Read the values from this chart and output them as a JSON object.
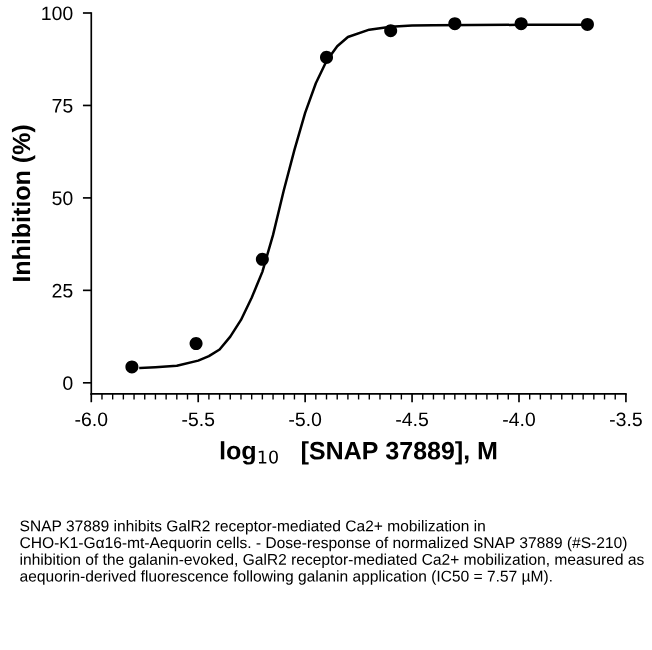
{
  "chart_data": {
    "type": "scatter",
    "xlabel": "log$_{10}$   [SNAP 37889], M",
    "ylabel": "Inhibition (%)",
    "series": [
      {
        "color": "#000000",
        "marker": "circle",
        "x": [
          -5.81,
          -5.51,
          -5.2,
          -4.9,
          -4.6,
          -4.3,
          -3.99,
          -3.68
        ],
        "values": [
          4.3,
          10.6,
          33.4,
          88.0,
          95.2,
          97.1,
          97.1,
          96.9
        ]
      },
      {
        "type": "line",
        "color": "#000000",
        "marker": "none",
        "x": [
          -5.77,
          -5.7,
          -5.6,
          -5.5,
          -5.45,
          -5.4,
          -5.35,
          -5.3,
          -5.25,
          -5.2,
          -5.15,
          -5.1,
          -5.05,
          -5.0,
          -4.95,
          -4.9,
          -4.85,
          -4.8,
          -4.7,
          -4.6,
          -4.5,
          -4.4,
          -4.0,
          -3.68
        ],
        "values": [
          4.0,
          4.2,
          4.6,
          6.0,
          7.2,
          9.0,
          12.5,
          17.0,
          23.0,
          30.0,
          40.0,
          52.0,
          63.0,
          73.0,
          81.0,
          87.0,
          91.0,
          93.5,
          95.5,
          96.3,
          96.6,
          96.7,
          96.8,
          96.8
        ]
      }
    ],
    "xlim": [
      -6.0,
      -3.5
    ],
    "xticks": [
      {
        "value": -6.0,
        "label": "-6.0"
      },
      {
        "value": -5.5,
        "label": "-5.5"
      },
      {
        "value": -5.0,
        "label": "-5.0"
      },
      {
        "value": -4.5,
        "label": "-4.5"
      },
      {
        "value": -4.0,
        "label": "-4.0"
      },
      {
        "value": -3.5,
        "label": "-3.5"
      }
    ],
    "ylim": [
      -3,
      100
    ],
    "yticks": [
      0,
      25,
      50,
      75,
      100
    ],
    "grid": false,
    "legend": false,
    "annotations": [
      "SNAP 37889 inhibits GalR2 receptor-mediated Ca2+ mobilization in CHO-K1-Gα16-mt-Aequorin cells. - Dose-response of normalized SNAP 37889 (#S-210) inhibition of the galanin-evoked, GalR2 receptor-mediated Ca2+ mobilization, measured as aequorin-derived fluorescence following galanin application (IC50 = 7.57 µM)."
    ]
  }
}
